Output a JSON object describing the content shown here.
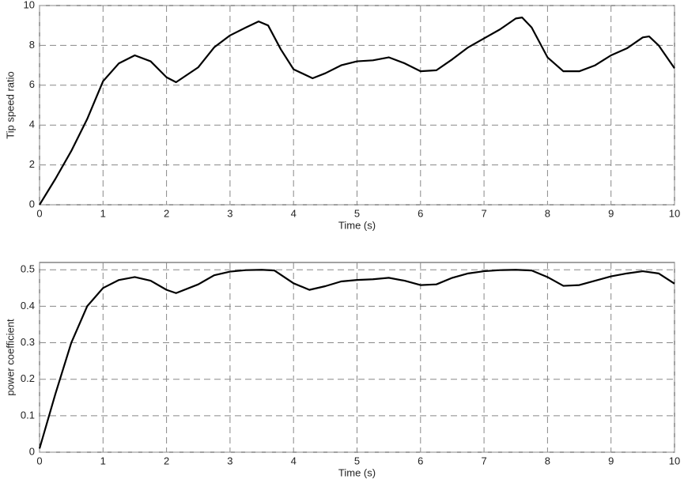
{
  "chart_data": [
    {
      "type": "line",
      "xlabel": "Time (s)",
      "ylabel": "Tip speed ratio",
      "x": [
        0,
        0.25,
        0.5,
        0.75,
        1,
        1.25,
        1.5,
        1.75,
        2,
        2.15,
        2.5,
        2.75,
        3,
        3.25,
        3.45,
        3.6,
        3.8,
        4,
        4.3,
        4.5,
        4.75,
        5,
        5.25,
        5.5,
        5.75,
        6,
        6.25,
        6.5,
        6.75,
        7,
        7.25,
        7.5,
        7.6,
        7.75,
        8,
        8.25,
        8.5,
        8.75,
        9,
        9.25,
        9.5,
        9.6,
        9.75,
        10
      ],
      "series": [
        {
          "color": "#000000",
          "values": [
            0,
            1.3,
            2.7,
            4.3,
            6.2,
            7.1,
            7.5,
            7.2,
            6.4,
            6.15,
            6.9,
            7.9,
            8.5,
            8.9,
            9.2,
            9.0,
            7.8,
            6.8,
            6.35,
            6.6,
            7.0,
            7.2,
            7.25,
            7.4,
            7.1,
            6.7,
            6.75,
            7.3,
            7.9,
            8.35,
            8.8,
            9.35,
            9.4,
            8.9,
            7.4,
            6.7,
            6.7,
            7.0,
            7.5,
            7.85,
            8.4,
            8.45,
            8.0,
            6.85
          ]
        }
      ],
      "xlim": [
        0,
        10
      ],
      "xticks": [
        0,
        1,
        2,
        3,
        4,
        5,
        6,
        7,
        8,
        9,
        10
      ],
      "ylim": [
        0,
        10
      ],
      "yticks": [
        0,
        2,
        4,
        6,
        8,
        10
      ],
      "grid": true
    },
    {
      "type": "line",
      "xlabel": "Time (s)",
      "ylabel": "power coefficient",
      "x": [
        0,
        0.25,
        0.5,
        0.75,
        1,
        1.25,
        1.5,
        1.75,
        2,
        2.15,
        2.5,
        2.75,
        3,
        3.25,
        3.5,
        3.7,
        4,
        4.25,
        4.5,
        4.75,
        5,
        5.25,
        5.5,
        5.75,
        6,
        6.25,
        6.5,
        6.75,
        7,
        7.25,
        7.5,
        7.75,
        8,
        8.25,
        8.5,
        8.75,
        9,
        9.25,
        9.5,
        9.75,
        10
      ],
      "series": [
        {
          "color": "#000000",
          "values": [
            0.01,
            0.16,
            0.3,
            0.4,
            0.45,
            0.472,
            0.48,
            0.47,
            0.445,
            0.436,
            0.46,
            0.485,
            0.495,
            0.499,
            0.5,
            0.498,
            0.463,
            0.445,
            0.455,
            0.468,
            0.472,
            0.474,
            0.478,
            0.47,
            0.458,
            0.46,
            0.478,
            0.49,
            0.496,
            0.499,
            0.5,
            0.498,
            0.48,
            0.456,
            0.458,
            0.47,
            0.482,
            0.49,
            0.496,
            0.49,
            0.462
          ]
        }
      ],
      "xlim": [
        0,
        10
      ],
      "xticks": [
        0,
        1,
        2,
        3,
        4,
        5,
        6,
        7,
        8,
        9,
        10
      ],
      "ylim": [
        0,
        0.52
      ],
      "yticks": [
        0,
        0.1,
        0.2,
        0.3,
        0.4,
        0.5
      ],
      "grid": true
    }
  ]
}
